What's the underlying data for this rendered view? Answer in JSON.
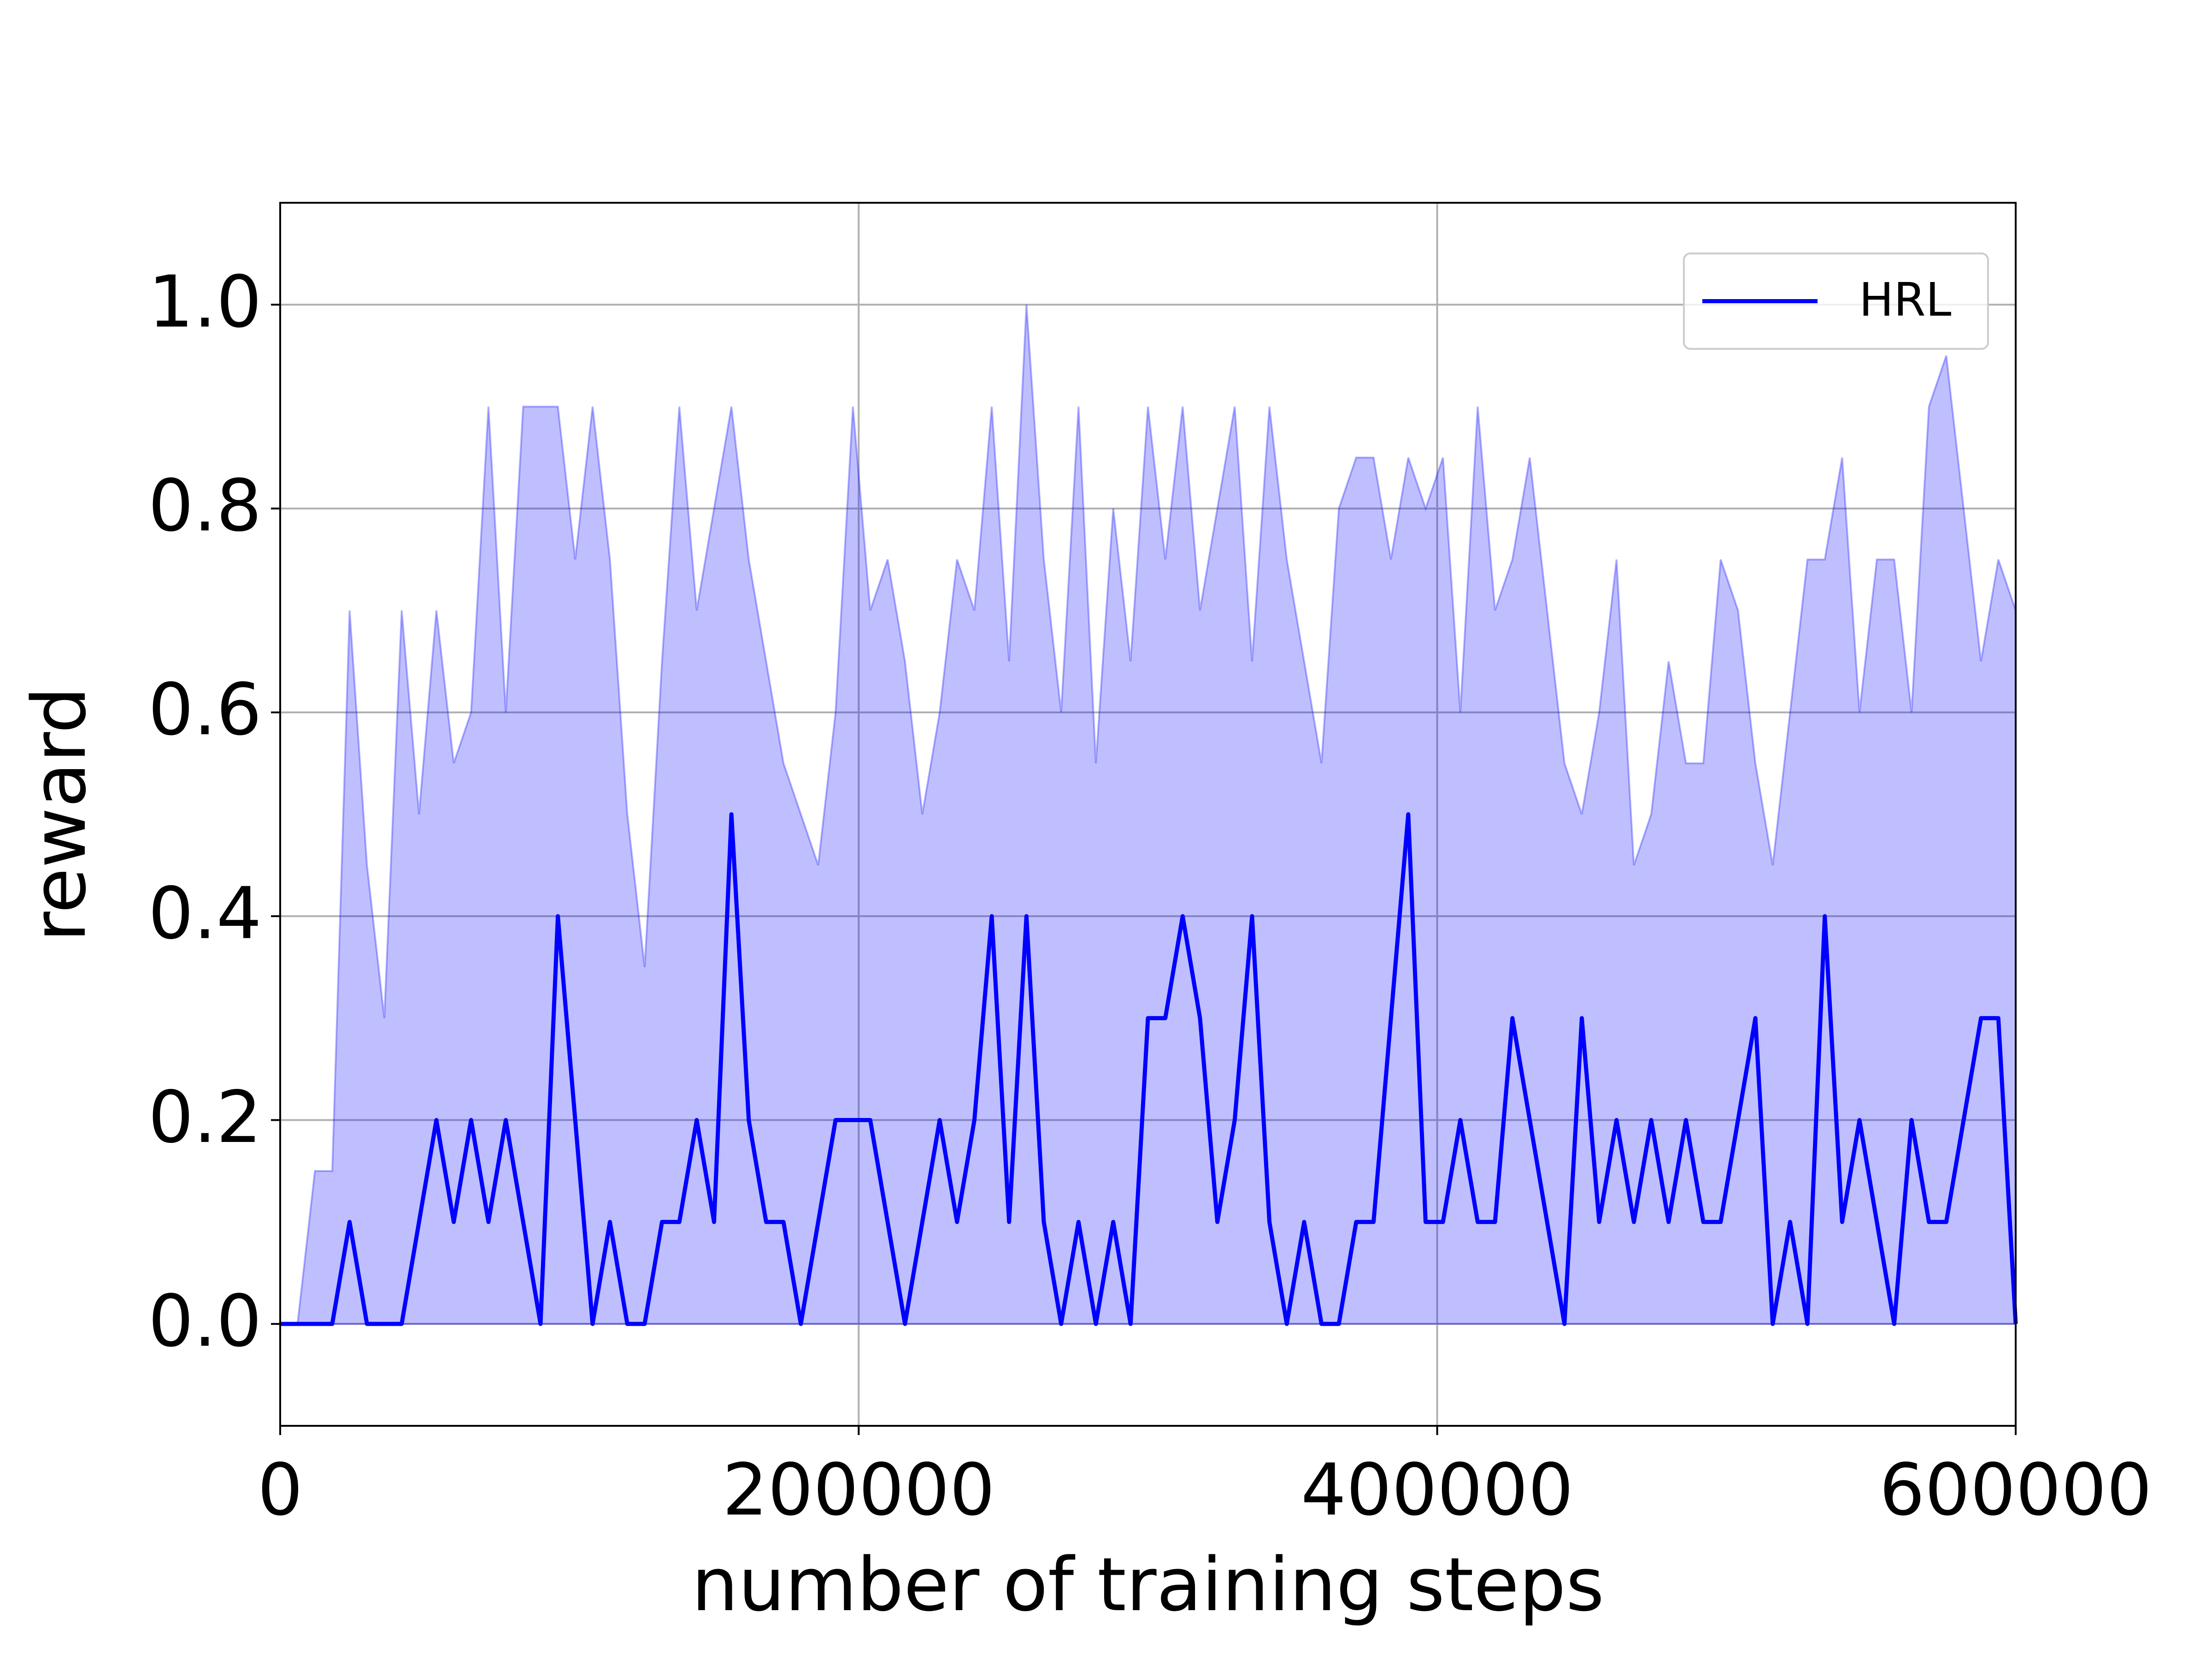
{
  "chart_data": {
    "type": "line",
    "xlabel": "number of training steps",
    "ylabel": "reward",
    "x": [
      0,
      6000,
      12000,
      18000,
      24000,
      30000,
      36000,
      42000,
      48000,
      54000,
      60000,
      66000,
      72000,
      78000,
      84000,
      90000,
      96000,
      102000,
      108000,
      114000,
      120000,
      126000,
      132000,
      138000,
      144000,
      150000,
      156000,
      162000,
      168000,
      174000,
      180000,
      186000,
      192000,
      198000,
      204000,
      210000,
      216000,
      222000,
      228000,
      234000,
      240000,
      246000,
      252000,
      258000,
      264000,
      270000,
      276000,
      282000,
      288000,
      294000,
      300000,
      306000,
      312000,
      318000,
      324000,
      330000,
      336000,
      342000,
      348000,
      354000,
      360000,
      366000,
      372000,
      378000,
      384000,
      390000,
      396000,
      402000,
      408000,
      414000,
      420000,
      426000,
      432000,
      438000,
      444000,
      450000,
      456000,
      462000,
      468000,
      474000,
      480000,
      486000,
      492000,
      498000,
      504000,
      510000,
      516000,
      522000,
      528000,
      534000,
      540000,
      546000,
      552000,
      558000,
      564000,
      570000,
      576000,
      582000,
      588000,
      594000,
      600000
    ],
    "series": [
      {
        "name": "HRL",
        "color": "#0000ff",
        "band_color": "#0000ff",
        "values": [
          0,
          0,
          0,
          0,
          0.1,
          0,
          0,
          0,
          0.1,
          0.2,
          0.1,
          0.2,
          0.1,
          0.2,
          0.1,
          0,
          0.4,
          0.2,
          0,
          0.1,
          0,
          0,
          0.1,
          0.1,
          0.2,
          0.1,
          0.5,
          0.2,
          0.1,
          0.1,
          0,
          0.1,
          0.2,
          0.2,
          0.2,
          0.1,
          0,
          0.1,
          0.2,
          0.1,
          0.2,
          0.4,
          0.1,
          0.4,
          0.1,
          0,
          0.1,
          0,
          0.1,
          0,
          0.3,
          0.3,
          0.4,
          0.3,
          0.1,
          0.2,
          0.4,
          0.1,
          0,
          0.1,
          0,
          0,
          0.1,
          0.1,
          0.3,
          0.5,
          0.1,
          0.1,
          0.2,
          0.1,
          0.1,
          0.3,
          0.2,
          0.1,
          0,
          0.3,
          0.1,
          0.2,
          0.1,
          0.2,
          0.1,
          0.2,
          0.1,
          0.1,
          0.2,
          0.3,
          0,
          0.1,
          0,
          0.4,
          0.1,
          0.2,
          0.1,
          0,
          0.2,
          0.1,
          0.1,
          0.2,
          0.3,
          0.3,
          0
        ],
        "band_upper": [
          0,
          0,
          0.15,
          0.15,
          0.7,
          0.45,
          0.3,
          0.7,
          0.5,
          0.7,
          0.55,
          0.6,
          0.9,
          0.6,
          0.9,
          0.9,
          0.9,
          0.75,
          0.9,
          0.75,
          0.5,
          0.35,
          0.65,
          0.9,
          0.7,
          0.8,
          0.9,
          0.75,
          0.65,
          0.55,
          0.5,
          0.45,
          0.6,
          0.9,
          0.7,
          0.75,
          0.65,
          0.5,
          0.6,
          0.75,
          0.7,
          0.9,
          0.65,
          1.0,
          0.75,
          0.6,
          0.9,
          0.55,
          0.8,
          0.65,
          0.9,
          0.75,
          0.9,
          0.7,
          0.8,
          0.9,
          0.65,
          0.9,
          0.75,
          0.65,
          0.55,
          0.8,
          0.85,
          0.85,
          0.75,
          0.85,
          0.8,
          0.85,
          0.6,
          0.9,
          0.7,
          0.75,
          0.85,
          0.7,
          0.55,
          0.5,
          0.6,
          0.75,
          0.45,
          0.5,
          0.65,
          0.55,
          0.55,
          0.75,
          0.7,
          0.55,
          0.45,
          0.6,
          0.75,
          0.75,
          0.85,
          0.6,
          0.75,
          0.75,
          0.6,
          0.9,
          0.95,
          0.8,
          0.65,
          0.75,
          0.7
        ],
        "band_lower": [
          0,
          0,
          0,
          0,
          0,
          0,
          0,
          0,
          0,
          0,
          0,
          0,
          0,
          0,
          0,
          0,
          0,
          0,
          0,
          0,
          0,
          0,
          0,
          0,
          0,
          0,
          0,
          0,
          0,
          0,
          0,
          0,
          0,
          0,
          0,
          0,
          0,
          0,
          0,
          0,
          0,
          0,
          0,
          0,
          0,
          0,
          0,
          0,
          0,
          0,
          0,
          0,
          0,
          0,
          0,
          0,
          0,
          0,
          0,
          0,
          0,
          0,
          0,
          0,
          0,
          0,
          0,
          0,
          0,
          0,
          0,
          0,
          0,
          0,
          0,
          0,
          0,
          0,
          0,
          0,
          0,
          0,
          0,
          0,
          0,
          0,
          0,
          0,
          0,
          0,
          0,
          0,
          0,
          0,
          0,
          0,
          0,
          0,
          0,
          0,
          0
        ]
      }
    ],
    "xlim": [
      0,
      600000
    ],
    "xticks": [
      0,
      200000,
      400000,
      600000
    ],
    "ylim": [
      -0.1,
      1.1
    ],
    "yticks": [
      {
        "value": 0,
        "label": "0.0"
      },
      {
        "value": 0.2,
        "label": "0.2"
      },
      {
        "value": 0.4,
        "label": "0.4"
      },
      {
        "value": 0.6,
        "label": "0.6"
      },
      {
        "value": 0.8,
        "label": "0.8"
      },
      {
        "value": 1,
        "label": "1.0"
      }
    ],
    "grid": true,
    "legend": "upper right"
  }
}
